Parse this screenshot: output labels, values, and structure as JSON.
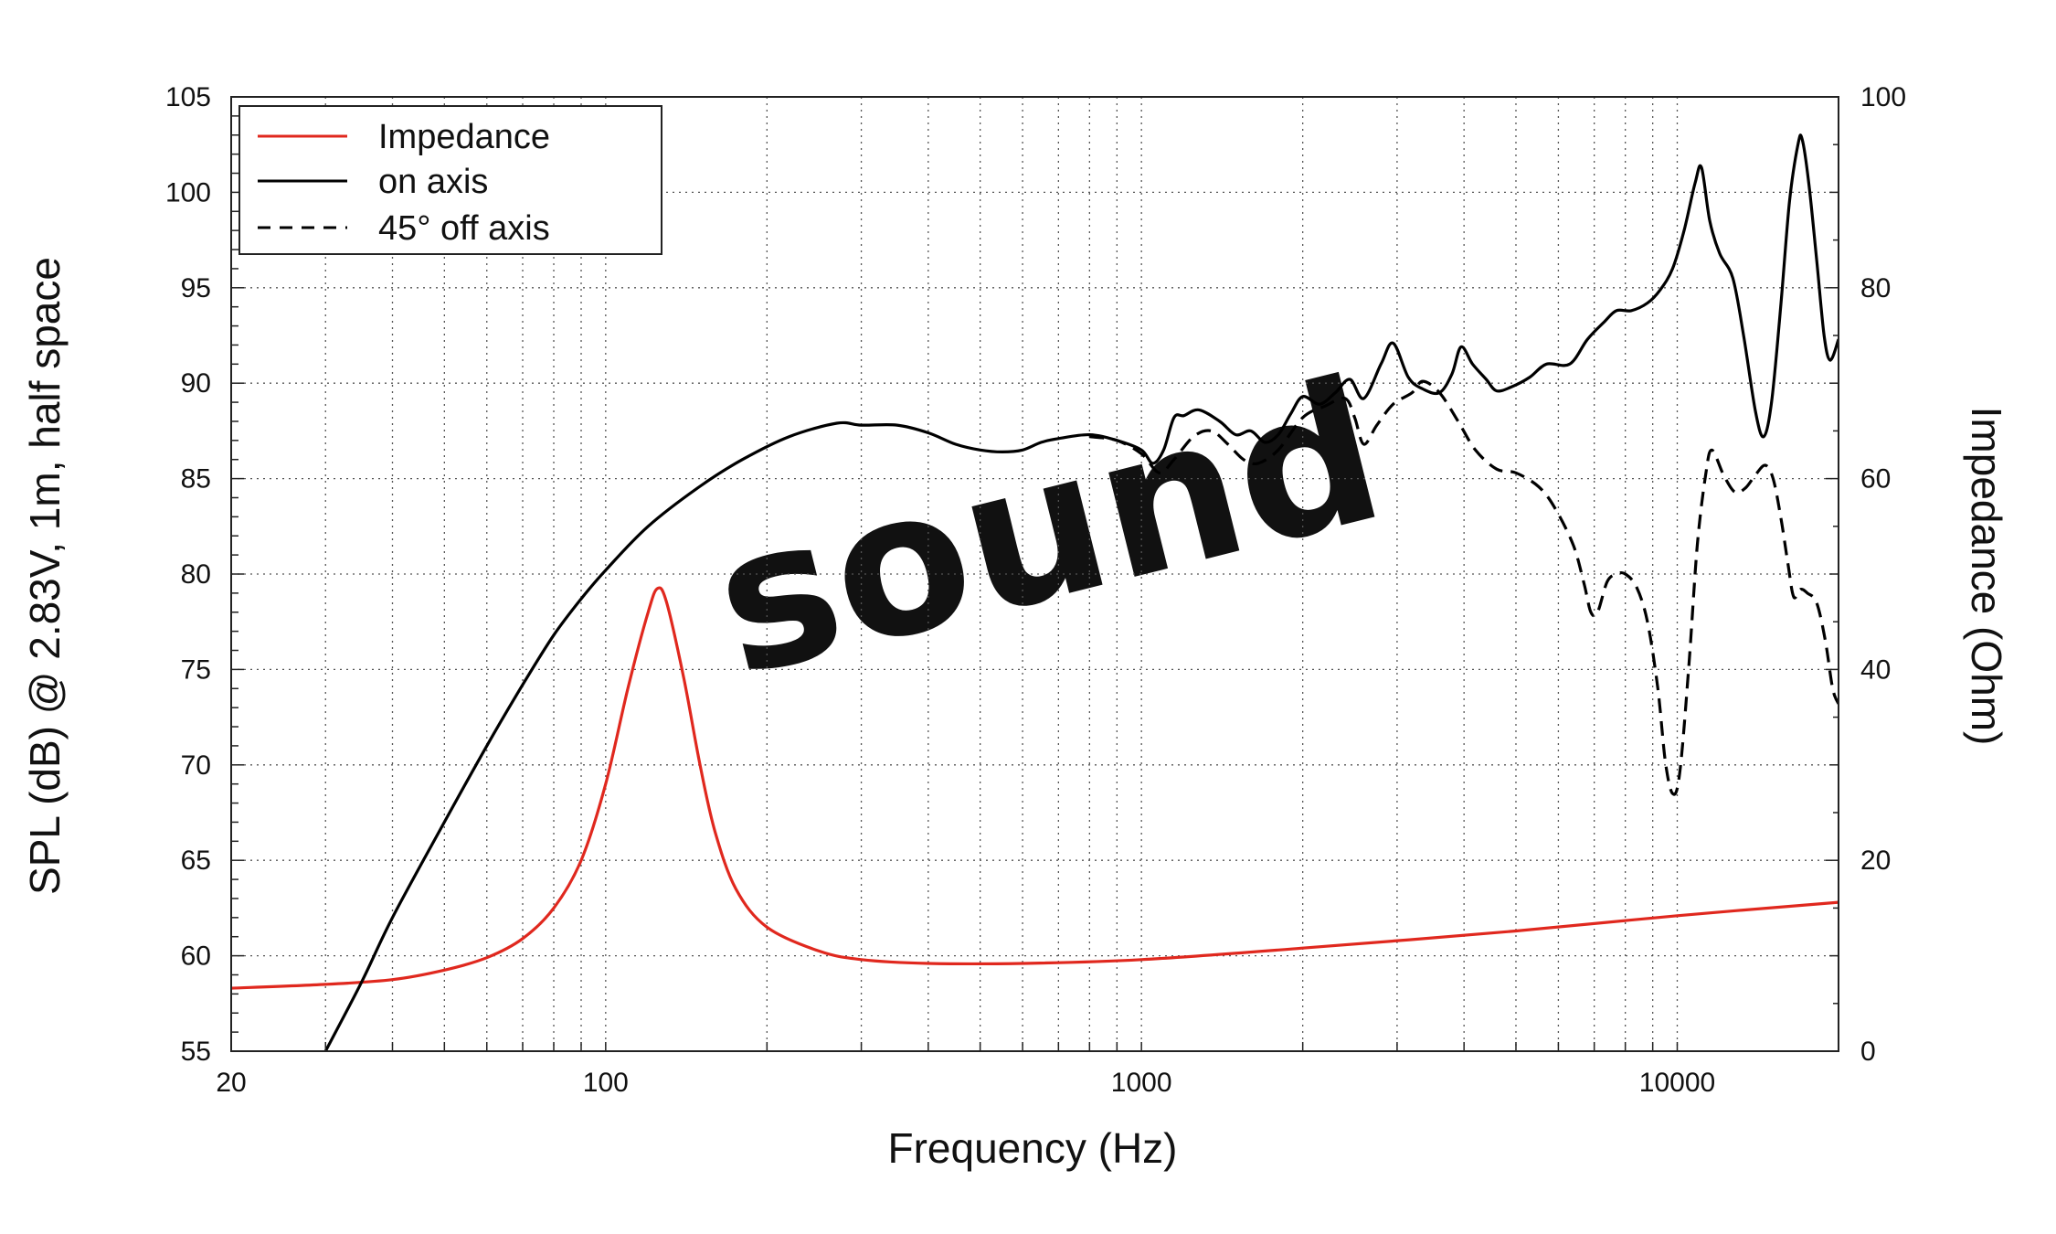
{
  "chart_data": {
    "type": "line",
    "xlabel": "Frequency (Hz)",
    "ylabel": "SPL (dB) @ 2.83V, 1m, half space",
    "y2label": "Impedance (Ohm)",
    "x_scale": "log",
    "xlim": [
      20,
      20000
    ],
    "ylim": [
      55,
      105
    ],
    "y2lim": [
      0,
      100
    ],
    "grid": true,
    "legend_position": "top-left",
    "x_ticks": [
      "20",
      "100",
      "1000",
      "10000"
    ],
    "x_tick_values": [
      20,
      100,
      1000,
      10000
    ],
    "y_ticks": [
      "55",
      "60",
      "65",
      "70",
      "75",
      "80",
      "85",
      "90",
      "95",
      "100",
      "105"
    ],
    "y_tick_values": [
      55,
      60,
      65,
      70,
      75,
      80,
      85,
      90,
      95,
      100,
      105
    ],
    "y2_ticks": [
      "0",
      "20",
      "40",
      "60",
      "80",
      "100"
    ],
    "y2_tick_values": [
      0,
      20,
      40,
      60,
      80,
      100
    ],
    "watermark": "sound",
    "series": [
      {
        "name": "Impedance",
        "axis": "right",
        "color": "#e0281e",
        "style": "solid",
        "points": [
          [
            20,
            6.6
          ],
          [
            30,
            7.0
          ],
          [
            40,
            7.5
          ],
          [
            50,
            8.5
          ],
          [
            60,
            9.8
          ],
          [
            70,
            11.8
          ],
          [
            80,
            15
          ],
          [
            90,
            20
          ],
          [
            100,
            28
          ],
          [
            110,
            38
          ],
          [
            120,
            46
          ],
          [
            125,
            48.5
          ],
          [
            130,
            47
          ],
          [
            140,
            39
          ],
          [
            150,
            30
          ],
          [
            160,
            23
          ],
          [
            175,
            17
          ],
          [
            200,
            13
          ],
          [
            250,
            10.5
          ],
          [
            300,
            9.6
          ],
          [
            400,
            9.2
          ],
          [
            600,
            9.2
          ],
          [
            1000,
            9.6
          ],
          [
            2000,
            10.8
          ],
          [
            5000,
            12.6
          ],
          [
            10000,
            14.2
          ],
          [
            20000,
            15.6
          ]
        ]
      },
      {
        "name": "on axis",
        "axis": "left",
        "color": "#000000",
        "style": "solid",
        "points": [
          [
            30,
            55
          ],
          [
            35,
            58.6
          ],
          [
            40,
            62
          ],
          [
            50,
            67
          ],
          [
            60,
            71
          ],
          [
            70,
            74.2
          ],
          [
            80,
            76.8
          ],
          [
            90,
            78.7
          ],
          [
            100,
            80.2
          ],
          [
            120,
            82.5
          ],
          [
            150,
            84.6
          ],
          [
            180,
            86
          ],
          [
            220,
            87.2
          ],
          [
            270,
            87.9
          ],
          [
            300,
            87.8
          ],
          [
            350,
            87.8
          ],
          [
            400,
            87.4
          ],
          [
            450,
            86.8
          ],
          [
            500,
            86.5
          ],
          [
            550,
            86.4
          ],
          [
            600,
            86.5
          ],
          [
            650,
            86.9
          ],
          [
            700,
            87.1
          ],
          [
            800,
            87.3
          ],
          [
            900,
            87
          ],
          [
            1000,
            86.5
          ],
          [
            1050,
            85.8
          ],
          [
            1100,
            86.5
          ],
          [
            1150,
            88.2
          ],
          [
            1200,
            88.3
          ],
          [
            1280,
            88.6
          ],
          [
            1400,
            88
          ],
          [
            1500,
            87.3
          ],
          [
            1600,
            87.5
          ],
          [
            1700,
            86.9
          ],
          [
            1800,
            87.3
          ],
          [
            1900,
            88.4
          ],
          [
            2000,
            89.3
          ],
          [
            2150,
            88.9
          ],
          [
            2300,
            89.5
          ],
          [
            2450,
            90.2
          ],
          [
            2600,
            89.2
          ],
          [
            2800,
            91
          ],
          [
            2950,
            92.1
          ],
          [
            3150,
            90.3
          ],
          [
            3350,
            89.7
          ],
          [
            3600,
            89.5
          ],
          [
            3800,
            90.5
          ],
          [
            3950,
            91.9
          ],
          [
            4150,
            91
          ],
          [
            4400,
            90.2
          ],
          [
            4600,
            89.6
          ],
          [
            4900,
            89.8
          ],
          [
            5300,
            90.3
          ],
          [
            5700,
            91
          ],
          [
            6300,
            91
          ],
          [
            6800,
            92.3
          ],
          [
            7300,
            93.2
          ],
          [
            7700,
            93.8
          ],
          [
            8200,
            93.8
          ],
          [
            8800,
            94.2
          ],
          [
            9300,
            94.9
          ],
          [
            9800,
            96
          ],
          [
            10300,
            98
          ],
          [
            10800,
            100.5
          ],
          [
            11100,
            101.3
          ],
          [
            11500,
            98.5
          ],
          [
            12000,
            96.8
          ],
          [
            12700,
            95.5
          ],
          [
            13300,
            92.5
          ],
          [
            14000,
            88.5
          ],
          [
            14500,
            87.2
          ],
          [
            15000,
            89
          ],
          [
            15600,
            94
          ],
          [
            16200,
            99.5
          ],
          [
            16800,
            102.5
          ],
          [
            17100,
            102.8
          ],
          [
            17600,
            100.5
          ],
          [
            18200,
            96.5
          ],
          [
            18800,
            92.5
          ],
          [
            19300,
            91.2
          ],
          [
            20000,
            92.3
          ]
        ]
      },
      {
        "name": "45° off axis",
        "axis": "left",
        "color": "#000000",
        "style": "dashed",
        "points": [
          [
            800,
            87.2
          ],
          [
            900,
            87
          ],
          [
            1000,
            86.3
          ],
          [
            1080,
            85.3
          ],
          [
            1150,
            86
          ],
          [
            1250,
            87.2
          ],
          [
            1350,
            87.5
          ],
          [
            1450,
            86.8
          ],
          [
            1550,
            86
          ],
          [
            1650,
            85.8
          ],
          [
            1800,
            86.5
          ],
          [
            2000,
            88.2
          ],
          [
            2200,
            88.8
          ],
          [
            2400,
            89.2
          ],
          [
            2500,
            88.2
          ],
          [
            2600,
            86.8
          ],
          [
            2750,
            87.8
          ],
          [
            2950,
            88.9
          ],
          [
            3200,
            89.5
          ],
          [
            3350,
            90.1
          ],
          [
            3600,
            89.5
          ],
          [
            3900,
            88
          ],
          [
            4200,
            86.5
          ],
          [
            4600,
            85.5
          ],
          [
            5000,
            85.3
          ],
          [
            5500,
            84.6
          ],
          [
            5900,
            83.5
          ],
          [
            6400,
            81.5
          ],
          [
            6700,
            79.5
          ],
          [
            6900,
            78
          ],
          [
            7100,
            78
          ],
          [
            7400,
            79.6
          ],
          [
            7700,
            80
          ],
          [
            8000,
            80
          ],
          [
            8400,
            79.3
          ],
          [
            8800,
            77.5
          ],
          [
            9200,
            74
          ],
          [
            9500,
            70.2
          ],
          [
            9800,
            68.5
          ],
          [
            10100,
            69.5
          ],
          [
            10500,
            75
          ],
          [
            10900,
            81.5
          ],
          [
            11300,
            85.2
          ],
          [
            11600,
            86.5
          ],
          [
            12200,
            85.2
          ],
          [
            12800,
            84.3
          ],
          [
            13400,
            84.5
          ],
          [
            14000,
            85.2
          ],
          [
            14600,
            85.7
          ],
          [
            15100,
            85
          ],
          [
            15600,
            83
          ],
          [
            16100,
            80.5
          ],
          [
            16500,
            78.8
          ],
          [
            17000,
            79.2
          ],
          [
            17500,
            79
          ],
          [
            18200,
            78.5
          ],
          [
            18900,
            76.5
          ],
          [
            19500,
            74
          ],
          [
            20000,
            73.2
          ]
        ]
      }
    ]
  }
}
